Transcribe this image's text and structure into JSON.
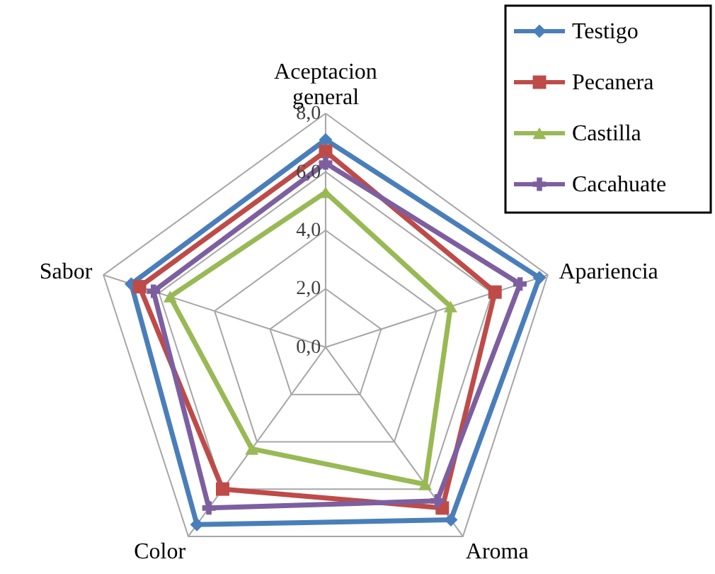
{
  "chart_data": {
    "type": "radar",
    "categories": [
      "Aceptacion general",
      "Apariencia",
      "Aroma",
      "Color",
      "Sabor"
    ],
    "series": [
      {
        "name": "Testigo",
        "color": "#4a7ebb",
        "marker": "diamond",
        "values": [
          7.1,
          7.7,
          7.3,
          7.5,
          7.0
        ]
      },
      {
        "name": "Pecanera",
        "color": "#be4b48",
        "marker": "square",
        "values": [
          6.7,
          6.1,
          6.8,
          6.0,
          6.7
        ]
      },
      {
        "name": "Castilla",
        "color": "#98b954",
        "marker": "triangle",
        "values": [
          5.3,
          4.5,
          5.8,
          4.3,
          5.6
        ]
      },
      {
        "name": "Cacahuate",
        "color": "#7d5fa0",
        "marker": "cross",
        "values": [
          6.3,
          7.0,
          6.5,
          6.8,
          6.2
        ]
      }
    ],
    "ylim": [
      0,
      8
    ],
    "yticks": [
      {
        "value": 0,
        "label": "0,0"
      },
      {
        "value": 2,
        "label": "2,0"
      },
      {
        "value": 4,
        "label": "4,0"
      },
      {
        "value": 6,
        "label": "6,0"
      },
      {
        "value": 8,
        "label": "8,0"
      }
    ],
    "grid": true,
    "legend": "top right"
  }
}
